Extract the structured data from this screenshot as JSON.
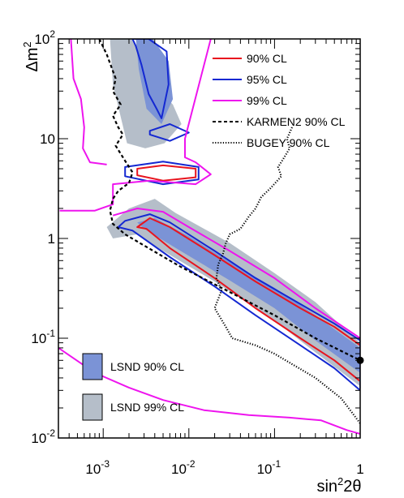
{
  "chart_data": {
    "type": "line",
    "x_scale": "log",
    "y_scale": "log",
    "xlim": [
      0.0003,
      1
    ],
    "ylim": [
      0.01,
      100
    ],
    "xlabel": "sin²2θ",
    "ylabel": "Δm²",
    "x_ticks": [
      {
        "value": 0.001,
        "base": "10",
        "exp": "-3"
      },
      {
        "value": 0.01,
        "base": "10",
        "exp": "-2"
      },
      {
        "value": 0.1,
        "base": "10",
        "exp": "-1"
      },
      {
        "value": 1,
        "base": "1",
        "exp": ""
      }
    ],
    "y_ticks": [
      {
        "value": 0.01,
        "base": "10",
        "exp": "-2"
      },
      {
        "value": 0.1,
        "base": "10",
        "exp": "-1"
      },
      {
        "value": 1,
        "base": "1",
        "exp": ""
      },
      {
        "value": 10,
        "base": "10",
        "exp": ""
      },
      {
        "value": 100,
        "base": "10",
        "exp": "2"
      }
    ],
    "legend_lines": [
      {
        "label": "90% CL",
        "color": "#e8141e",
        "style": "solid"
      },
      {
        "label": "95% CL",
        "color": "#1428d2",
        "style": "solid"
      },
      {
        "label": "99% CL",
        "color": "#ee14ee",
        "style": "solid"
      },
      {
        "label": "KARMEN2 90% CL",
        "color": "#000000",
        "style": "dashed"
      },
      {
        "label": "BUGEY 90% CL",
        "color": "#000000",
        "style": "dotted"
      }
    ],
    "legend_regions": [
      {
        "label": "LSND 90% CL",
        "color": "#7b93d6"
      },
      {
        "label": "LSND 99% CL",
        "color": "#b5bec9"
      }
    ],
    "marker": {
      "x": 1,
      "y": 0.06
    },
    "regions": {
      "lsnd99": [
        {
          "name": "high",
          "x": [
            0.0012,
            0.0022,
            0.0033,
            0.0065,
            0.0082,
            0.0052,
            0.0031,
            0.0019,
            0.0013
          ],
          "y": [
            100,
            100,
            40,
            22,
            14,
            9,
            8,
            9,
            35
          ]
        },
        {
          "name": "main",
          "x": [
            0.0011,
            0.002,
            0.004,
            0.007,
            0.03,
            0.1,
            0.3,
            1,
            1,
            0.3,
            0.1,
            0.02,
            0.005,
            0.0025,
            0.0013
          ],
          "y": [
            1.3,
            2.0,
            2.5,
            1.8,
            0.9,
            0.45,
            0.23,
            0.09,
            0.033,
            0.072,
            0.15,
            0.37,
            0.75,
            1.1,
            1.0
          ]
        }
      ],
      "lsnd90": [
        {
          "name": "high",
          "x": [
            0.0024,
            0.0038,
            0.0058,
            0.0065,
            0.0048,
            0.0032,
            0.0026
          ],
          "y": [
            100,
            100,
            60,
            25,
            14,
            20,
            50
          ]
        },
        {
          "name": "main",
          "x": [
            0.0025,
            0.004,
            0.01,
            0.03,
            0.1,
            0.3,
            1,
            1,
            0.3,
            0.1,
            0.03,
            0.008,
            0.003
          ],
          "y": [
            1.45,
            1.6,
            1.05,
            0.58,
            0.32,
            0.17,
            0.08,
            0.045,
            0.095,
            0.2,
            0.38,
            0.75,
            1.25
          ]
        }
      ]
    },
    "series": [
      {
        "name": "90% CL",
        "color": "#e8141e",
        "style": "solid",
        "closed": true,
        "x": [
          0.0025,
          0.0035,
          0.006,
          0.02,
          0.06,
          0.2,
          0.5,
          1,
          1,
          0.5,
          0.2,
          0.06,
          0.02,
          0.006,
          0.0032
        ],
        "y": [
          1.3,
          1.6,
          1.3,
          0.68,
          0.37,
          0.2,
          0.13,
          0.085,
          0.037,
          0.06,
          0.1,
          0.2,
          0.4,
          0.8,
          1.25
        ]
      },
      {
        "name": "90% CL",
        "color": "#e8141e",
        "style": "solid",
        "closed": true,
        "x": [
          0.0025,
          0.005,
          0.012,
          0.012,
          0.005,
          0.0025
        ],
        "y": [
          5.0,
          5.4,
          5.0,
          4.1,
          3.8,
          4.3
        ]
      },
      {
        "name": "95% CL",
        "color": "#1428d2",
        "style": "solid",
        "closed": true,
        "x": [
          0.0018,
          0.0035,
          0.006,
          0.02,
          0.06,
          0.2,
          0.5,
          1,
          1,
          0.5,
          0.2,
          0.06,
          0.02,
          0.006,
          0.0022,
          0.0015
        ],
        "y": [
          1.5,
          1.75,
          1.45,
          0.75,
          0.4,
          0.22,
          0.14,
          0.095,
          0.03,
          0.05,
          0.085,
          0.17,
          0.33,
          0.65,
          1.2,
          1.3
        ]
      },
      {
        "name": "95% CL",
        "color": "#1428d2",
        "style": "solid",
        "closed": true,
        "x": [
          0.0018,
          0.005,
          0.013,
          0.013,
          0.005,
          0.0018
        ],
        "y": [
          5.2,
          5.9,
          5.2,
          3.9,
          3.5,
          4.2
        ]
      },
      {
        "name": "95% CL",
        "color": "#1428d2",
        "style": "solid",
        "closed": true,
        "x": [
          0.0035,
          0.006,
          0.01,
          0.006,
          0.0035
        ],
        "y": [
          12,
          14,
          11.5,
          9.5,
          11
        ]
      },
      {
        "name": "95% CL",
        "color": "#1428d2",
        "style": "solid",
        "closed": true,
        "x": [
          0.0022,
          0.0034,
          0.0055,
          0.0058,
          0.0048,
          0.0042,
          0.0034,
          0.0028,
          0.0024
        ],
        "y": [
          100,
          100,
          75,
          35,
          16,
          20,
          28,
          55,
          85
        ]
      },
      {
        "name": "99% CL",
        "color": "#ee14ee",
        "style": "solid",
        "closed": false,
        "x": [
          0.0003,
          0.0008,
          0.002,
          0.005,
          0.015,
          0.05,
          0.15,
          0.35,
          0.7,
          1
        ],
        "y": [
          0.08,
          0.045,
          0.032,
          0.024,
          0.019,
          0.017,
          0.016,
          0.015,
          0.012,
          0.011
        ]
      },
      {
        "name": "99% CL",
        "color": "#ee14ee",
        "style": "solid",
        "closed": false,
        "x": [
          0.00031,
          0.0008,
          0.0013,
          0.0013,
          0.0035,
          0.012,
          0.018,
          0.012,
          0.009,
          0.009,
          0.018
        ],
        "y": [
          1.9,
          1.9,
          2.2,
          3.5,
          3.8,
          3.5,
          4.4,
          5.8,
          6.5,
          10,
          100
        ]
      },
      {
        "name": "99% CL",
        "color": "#ee14ee",
        "style": "solid",
        "closed": false,
        "x": [
          0.00042,
          0.00045,
          0.00055,
          0.0006,
          0.00058,
          0.0007,
          0.0011
        ],
        "y": [
          100,
          40,
          25,
          13,
          8,
          5.8,
          5.5
        ]
      },
      {
        "name": "99% CL",
        "color": "#ee14ee",
        "style": "solid",
        "closed": false,
        "x": [
          0.0013,
          0.0025,
          0.005,
          0.01,
          0.03,
          0.1,
          0.3,
          1
        ],
        "y": [
          1.7,
          2.0,
          1.85,
          1.3,
          0.75,
          0.4,
          0.2,
          0.1
        ]
      },
      {
        "name": "KARMEN2 90% CL",
        "color": "#000000",
        "style": "dashed",
        "closed": false,
        "x": [
          0.0009,
          0.0011,
          0.0014,
          0.0013,
          0.0016,
          0.0013,
          0.0015,
          0.0017,
          0.0014,
          0.0018,
          0.0022,
          0.002,
          0.0015,
          0.0013,
          0.0012,
          0.0013,
          0.0018,
          0.003,
          0.008,
          0.03,
          0.1,
          0.3,
          1
        ],
        "y": [
          100,
          70,
          40,
          30,
          22,
          17,
          13,
          11,
          8.5,
          6,
          4.6,
          3.6,
          3.0,
          2.5,
          1.9,
          1.4,
          1.1,
          0.85,
          0.52,
          0.29,
          0.17,
          0.1,
          0.06
        ]
      },
      {
        "name": "BUGEY 90% CL",
        "color": "#000000",
        "style": "dotted",
        "closed": false,
        "x": [
          0.16,
          0.14,
          0.15,
          0.13,
          0.11,
          0.12,
          0.09,
          0.07,
          0.06,
          0.05,
          0.04,
          0.03,
          0.027,
          0.025,
          0.022,
          0.021,
          0.024,
          0.02,
          0.027,
          0.032,
          0.06,
          0.1,
          0.16,
          0.3,
          0.6,
          1
        ],
        "y": [
          13,
          10,
          8,
          6.5,
          5.2,
          4.2,
          3.2,
          2.6,
          2.0,
          1.65,
          1.25,
          1.1,
          0.9,
          0.7,
          0.55,
          0.4,
          0.3,
          0.2,
          0.13,
          0.1,
          0.085,
          0.07,
          0.055,
          0.04,
          0.025,
          0.014
        ]
      }
    ]
  }
}
